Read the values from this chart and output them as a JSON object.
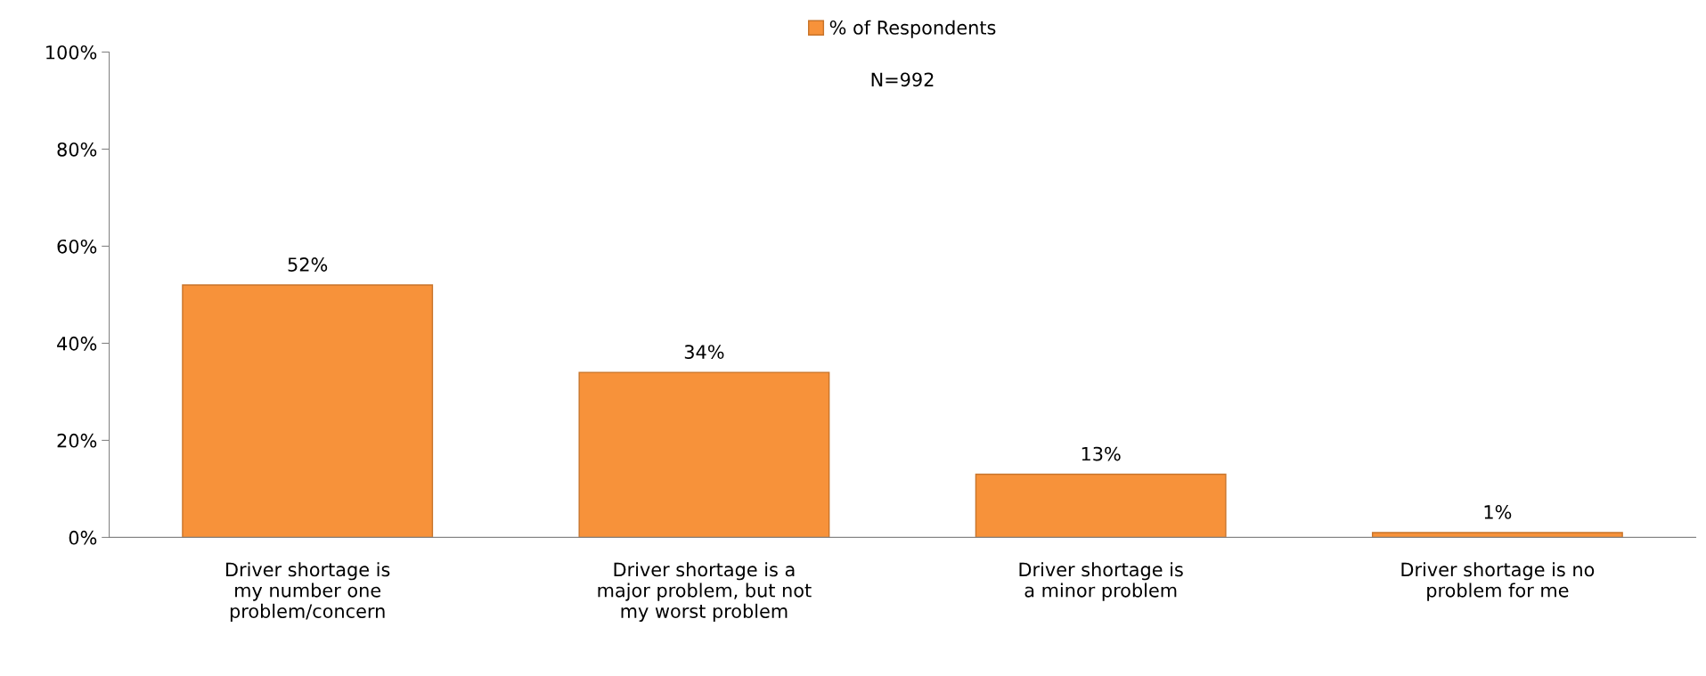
{
  "chart_data": {
    "type": "bar",
    "categories": [
      "Driver shortage is\nmy number one\nproblem/concern",
      "Driver shortage is a\nmajor problem, but not\nmy worst problem",
      "Driver shortage is\na minor problem",
      "Driver shortage is no\nproblem for me"
    ],
    "series": [
      {
        "name": "% of Respondents",
        "color": "#f7923a",
        "values": [
          52,
          34,
          13,
          1
        ]
      }
    ],
    "value_labels": [
      "52%",
      "34%",
      "13%",
      "1%"
    ],
    "ylim": [
      0,
      100
    ],
    "yticks": [
      {
        "value": 0,
        "label": "0%"
      },
      {
        "value": 20,
        "label": "20%"
      },
      {
        "value": 40,
        "label": "40%"
      },
      {
        "value": 60,
        "label": "60%"
      },
      {
        "value": 80,
        "label": "80%"
      },
      {
        "value": 100,
        "label": "100%"
      }
    ],
    "annotations": [
      "N=992"
    ],
    "legend": "top",
    "grid": false
  }
}
